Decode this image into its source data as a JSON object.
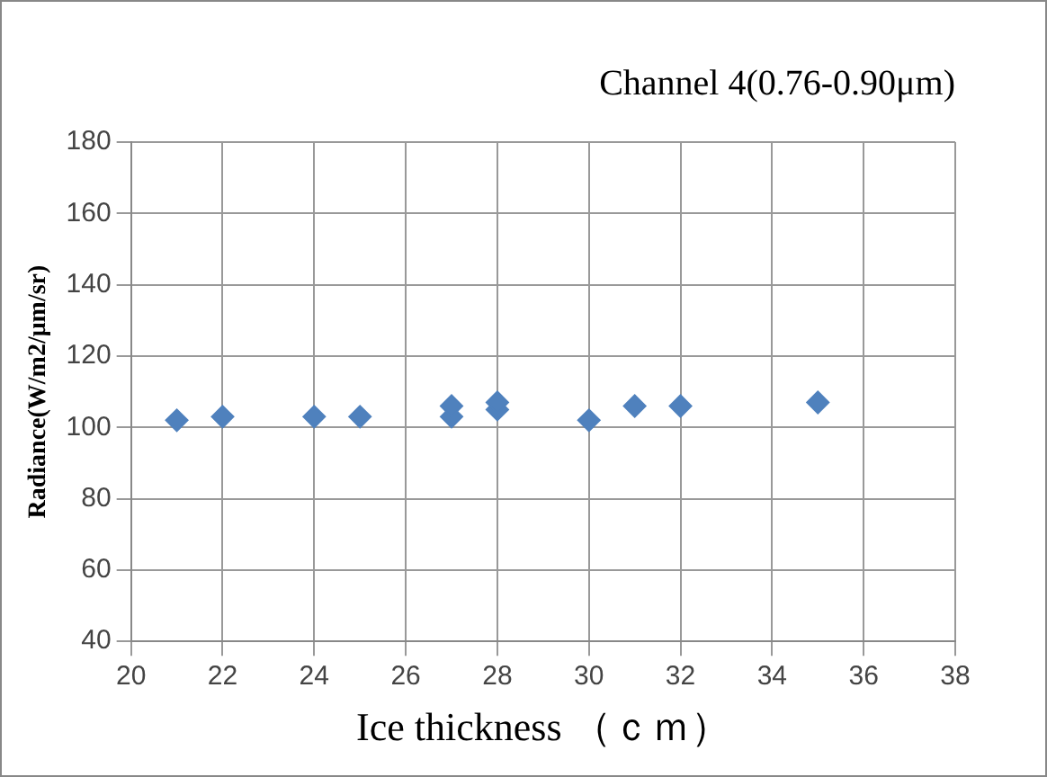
{
  "chart_data": {
    "type": "scatter",
    "title": "Channel 4(0.76-0.90μm)",
    "xlabel": "Ice thickness （ｃｍ）",
    "ylabel": "Radiance(W/m2/μm/sr)",
    "x": [
      21,
      22,
      24,
      25,
      27,
      27,
      28,
      28,
      30,
      31,
      32,
      35
    ],
    "series": [
      {
        "color": "#4f81bd",
        "values": [
          102,
          103,
          103,
          103,
          103,
          106,
          105,
          107,
          102,
          106,
          106,
          107
        ]
      }
    ],
    "xlim": [
      20,
      38
    ],
    "xticks": [
      20,
      22,
      24,
      26,
      28,
      30,
      32,
      34,
      36,
      38
    ],
    "ylim": [
      40,
      180
    ],
    "yticks": [
      40,
      60,
      80,
      100,
      120,
      140,
      160,
      180
    ],
    "grid": true,
    "legend": false,
    "marker": "diamond"
  }
}
